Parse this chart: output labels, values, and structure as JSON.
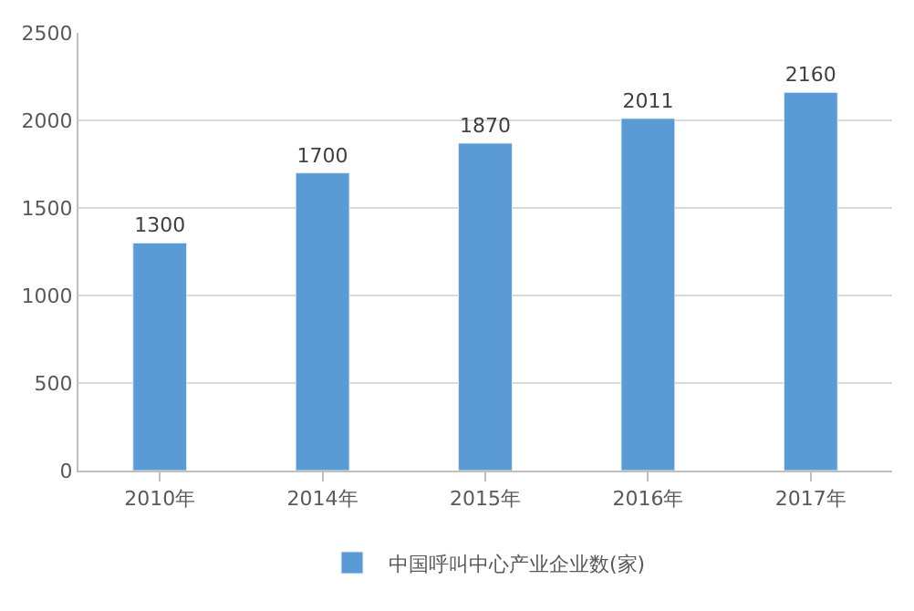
{
  "chart_data": {
    "type": "bar",
    "categories": [
      "2010年",
      "2014年",
      "2015年",
      "2016年",
      "2017年"
    ],
    "series": [
      {
        "name": "中国呼叫中心产业企业数(家)",
        "color": "#5b9bd5",
        "values": [
          1300,
          1700,
          1870,
          2011,
          2160
        ]
      }
    ],
    "ylim": [
      0,
      2500
    ],
    "yticks": [
      0,
      500,
      1000,
      1500,
      2000,
      2500
    ],
    "grid": "y",
    "legend": "bottom",
    "data_labels": true
  }
}
